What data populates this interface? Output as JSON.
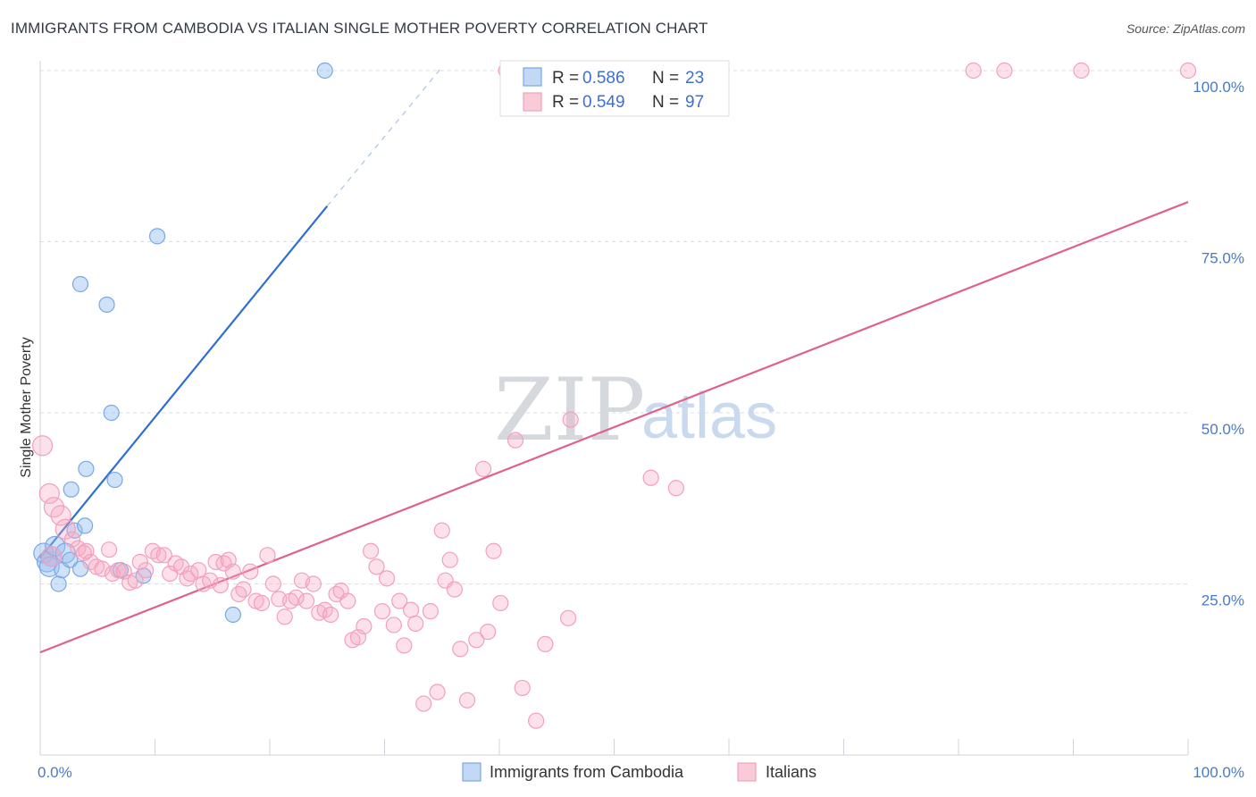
{
  "title": "IMMIGRANTS FROM CAMBODIA VS ITALIAN SINGLE MOTHER POVERTY CORRELATION CHART",
  "source": "Source: ZipAtlas.com",
  "watermark": {
    "zip": "ZIP",
    "atlas": "atlas"
  },
  "colors": {
    "blue": "#7aa7e6",
    "blue_line": "#2f6fd0",
    "pink": "#f2a0bb",
    "pink_line": "#e06090",
    "tick": "#4a7ac7",
    "grid": "#d8dce3"
  },
  "legend": {
    "rows": [
      {
        "r_label": "R =",
        "r_value": "0.586",
        "n_label": "N =",
        "n_value": "23"
      },
      {
        "r_label": "R =",
        "r_value": "0.549",
        "n_label": "N =",
        "n_value": "97"
      }
    ]
  },
  "bottom_legend": [
    "Immigrants from Cambodia",
    "Italians"
  ],
  "chart_data": {
    "type": "scatter",
    "xlabel": "",
    "ylabel": "Single Mother Poverty",
    "xlim": [
      0,
      100
    ],
    "ylim": [
      0,
      100
    ],
    "x_ticks": [
      "0.0%",
      "100.0%"
    ],
    "y_ticks": [
      {
        "v": 25,
        "label": "25.0%"
      },
      {
        "v": 50,
        "label": "50.0%"
      },
      {
        "v": 75,
        "label": "75.0%"
      },
      {
        "v": 100,
        "label": "100.0%"
      }
    ],
    "grid": true,
    "series": [
      {
        "name": "Immigrants from Cambodia",
        "color": "#7aa7e6",
        "points": [
          [
            0.3,
            29.5
          ],
          [
            0.6,
            28.2
          ],
          [
            0.8,
            27.5
          ],
          [
            1.0,
            29.0
          ],
          [
            1.3,
            30.5
          ],
          [
            1.6,
            25.0
          ],
          [
            1.9,
            27.0
          ],
          [
            2.2,
            29.5
          ],
          [
            2.6,
            28.5
          ],
          [
            2.7,
            38.8
          ],
          [
            3.0,
            32.8
          ],
          [
            3.5,
            68.8
          ],
          [
            3.5,
            27.2
          ],
          [
            3.9,
            33.5
          ],
          [
            4.0,
            41.8
          ],
          [
            5.8,
            65.8
          ],
          [
            6.2,
            50.0
          ],
          [
            6.5,
            40.2
          ],
          [
            7.0,
            27.0
          ],
          [
            9.0,
            26.2
          ],
          [
            10.2,
            75.8
          ],
          [
            16.8,
            20.5
          ],
          [
            24.8,
            100.0
          ]
        ],
        "trend": {
          "x0": 0,
          "y0": 28.8,
          "x1": 25.0,
          "y1": 80.2,
          "dash_to": [
            35.0,
            100.5
          ]
        }
      },
      {
        "name": "Italians",
        "color": "#f2a0bb",
        "points": [
          [
            0.2,
            45.2
          ],
          [
            0.8,
            38.2
          ],
          [
            1.2,
            36.2
          ],
          [
            1.8,
            35.0
          ],
          [
            2.2,
            33.0
          ],
          [
            2.8,
            31.5
          ],
          [
            3.3,
            30.2
          ],
          [
            3.8,
            29.5
          ],
          [
            4.4,
            28.2
          ],
          [
            4.9,
            27.5
          ],
          [
            5.4,
            27.2
          ],
          [
            6.0,
            30.0
          ],
          [
            6.3,
            26.5
          ],
          [
            6.8,
            27.0
          ],
          [
            7.3,
            26.8
          ],
          [
            7.8,
            25.2
          ],
          [
            8.3,
            25.5
          ],
          [
            8.7,
            28.2
          ],
          [
            9.2,
            27.0
          ],
          [
            9.8,
            29.8
          ],
          [
            10.3,
            29.2
          ],
          [
            10.8,
            29.2
          ],
          [
            11.3,
            26.5
          ],
          [
            11.8,
            28.0
          ],
          [
            12.3,
            27.5
          ],
          [
            12.8,
            25.8
          ],
          [
            13.1,
            26.5
          ],
          [
            13.8,
            27.0
          ],
          [
            14.2,
            25.0
          ],
          [
            14.8,
            25.5
          ],
          [
            15.3,
            28.2
          ],
          [
            15.7,
            24.8
          ],
          [
            16.0,
            28.0
          ],
          [
            16.4,
            28.5
          ],
          [
            16.8,
            26.8
          ],
          [
            17.3,
            23.5
          ],
          [
            17.7,
            24.2
          ],
          [
            18.3,
            26.8
          ],
          [
            18.8,
            22.5
          ],
          [
            19.3,
            22.2
          ],
          [
            19.8,
            29.2
          ],
          [
            20.3,
            25.0
          ],
          [
            20.8,
            22.8
          ],
          [
            21.3,
            20.2
          ],
          [
            21.8,
            22.5
          ],
          [
            22.3,
            23.0
          ],
          [
            22.8,
            25.5
          ],
          [
            23.2,
            22.5
          ],
          [
            23.8,
            25.0
          ],
          [
            24.3,
            20.8
          ],
          [
            24.8,
            21.2
          ],
          [
            25.3,
            20.5
          ],
          [
            25.8,
            23.5
          ],
          [
            26.2,
            24.0
          ],
          [
            26.8,
            22.5
          ],
          [
            27.2,
            16.8
          ],
          [
            27.7,
            17.2
          ],
          [
            28.2,
            18.8
          ],
          [
            28.8,
            29.8
          ],
          [
            29.3,
            27.5
          ],
          [
            29.8,
            21.0
          ],
          [
            30.2,
            25.8
          ],
          [
            30.8,
            19.0
          ],
          [
            31.3,
            22.5
          ],
          [
            31.7,
            16.0
          ],
          [
            32.3,
            21.2
          ],
          [
            32.7,
            19.2
          ],
          [
            33.4,
            7.5
          ],
          [
            34.0,
            21.0
          ],
          [
            34.6,
            9.2
          ],
          [
            35.0,
            32.8
          ],
          [
            35.3,
            25.5
          ],
          [
            35.7,
            28.5
          ],
          [
            36.1,
            24.2
          ],
          [
            36.6,
            15.5
          ],
          [
            37.2,
            8.0
          ],
          [
            38.0,
            16.8
          ],
          [
            38.6,
            41.8
          ],
          [
            39.0,
            18.0
          ],
          [
            39.5,
            29.8
          ],
          [
            40.1,
            22.2
          ],
          [
            40.6,
            100.0
          ],
          [
            41.4,
            46.0
          ],
          [
            42.0,
            9.8
          ],
          [
            43.2,
            5.0
          ],
          [
            44.0,
            16.2
          ],
          [
            46.0,
            20.0
          ],
          [
            46.2,
            49.0
          ],
          [
            48.0,
            100.0
          ],
          [
            53.2,
            40.5
          ],
          [
            55.4,
            39.0
          ],
          [
            81.3,
            100.0
          ],
          [
            84.0,
            100.0
          ],
          [
            90.7,
            100.0
          ],
          [
            100.0,
            100.0
          ],
          [
            1.0,
            29.0
          ],
          [
            4.0,
            29.8
          ]
        ],
        "trend": {
          "x0": 0,
          "y0": 15.0,
          "x1": 100,
          "y1": 80.8
        }
      }
    ]
  }
}
